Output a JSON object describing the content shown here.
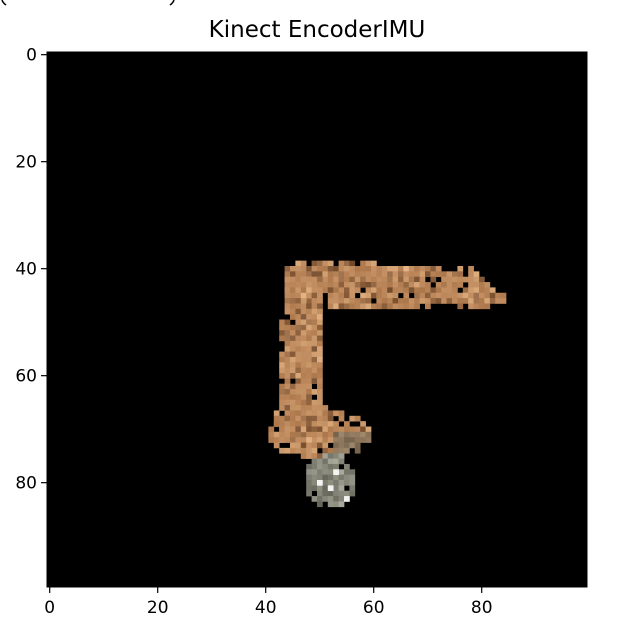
{
  "chart_data": {
    "type": "image",
    "title": "Kinect EncoderIMU",
    "xlabel": "",
    "ylabel": "",
    "xlim": [
      0,
      100
    ],
    "ylim": [
      100,
      0
    ],
    "x_ticks": [
      0,
      20,
      40,
      60,
      80
    ],
    "y_ticks": [
      0,
      20,
      40,
      60,
      80
    ],
    "x_tick_labels": [
      "0",
      "20",
      "40",
      "60",
      "80"
    ],
    "y_tick_labels": [
      "0",
      "20",
      "40",
      "60",
      "80"
    ],
    "y_axis_inverted": true,
    "grid": false,
    "background_color": "#000000",
    "image_content": "pixelated segmented robot arm on black background",
    "colors": {
      "arm_main": "#b88458",
      "arm_dark": "#7a5233",
      "arm_light": "#d8a878",
      "gripper": "#6e6e62",
      "gripper_light": "#a8a89a",
      "highlight": "#ffffff"
    }
  }
}
